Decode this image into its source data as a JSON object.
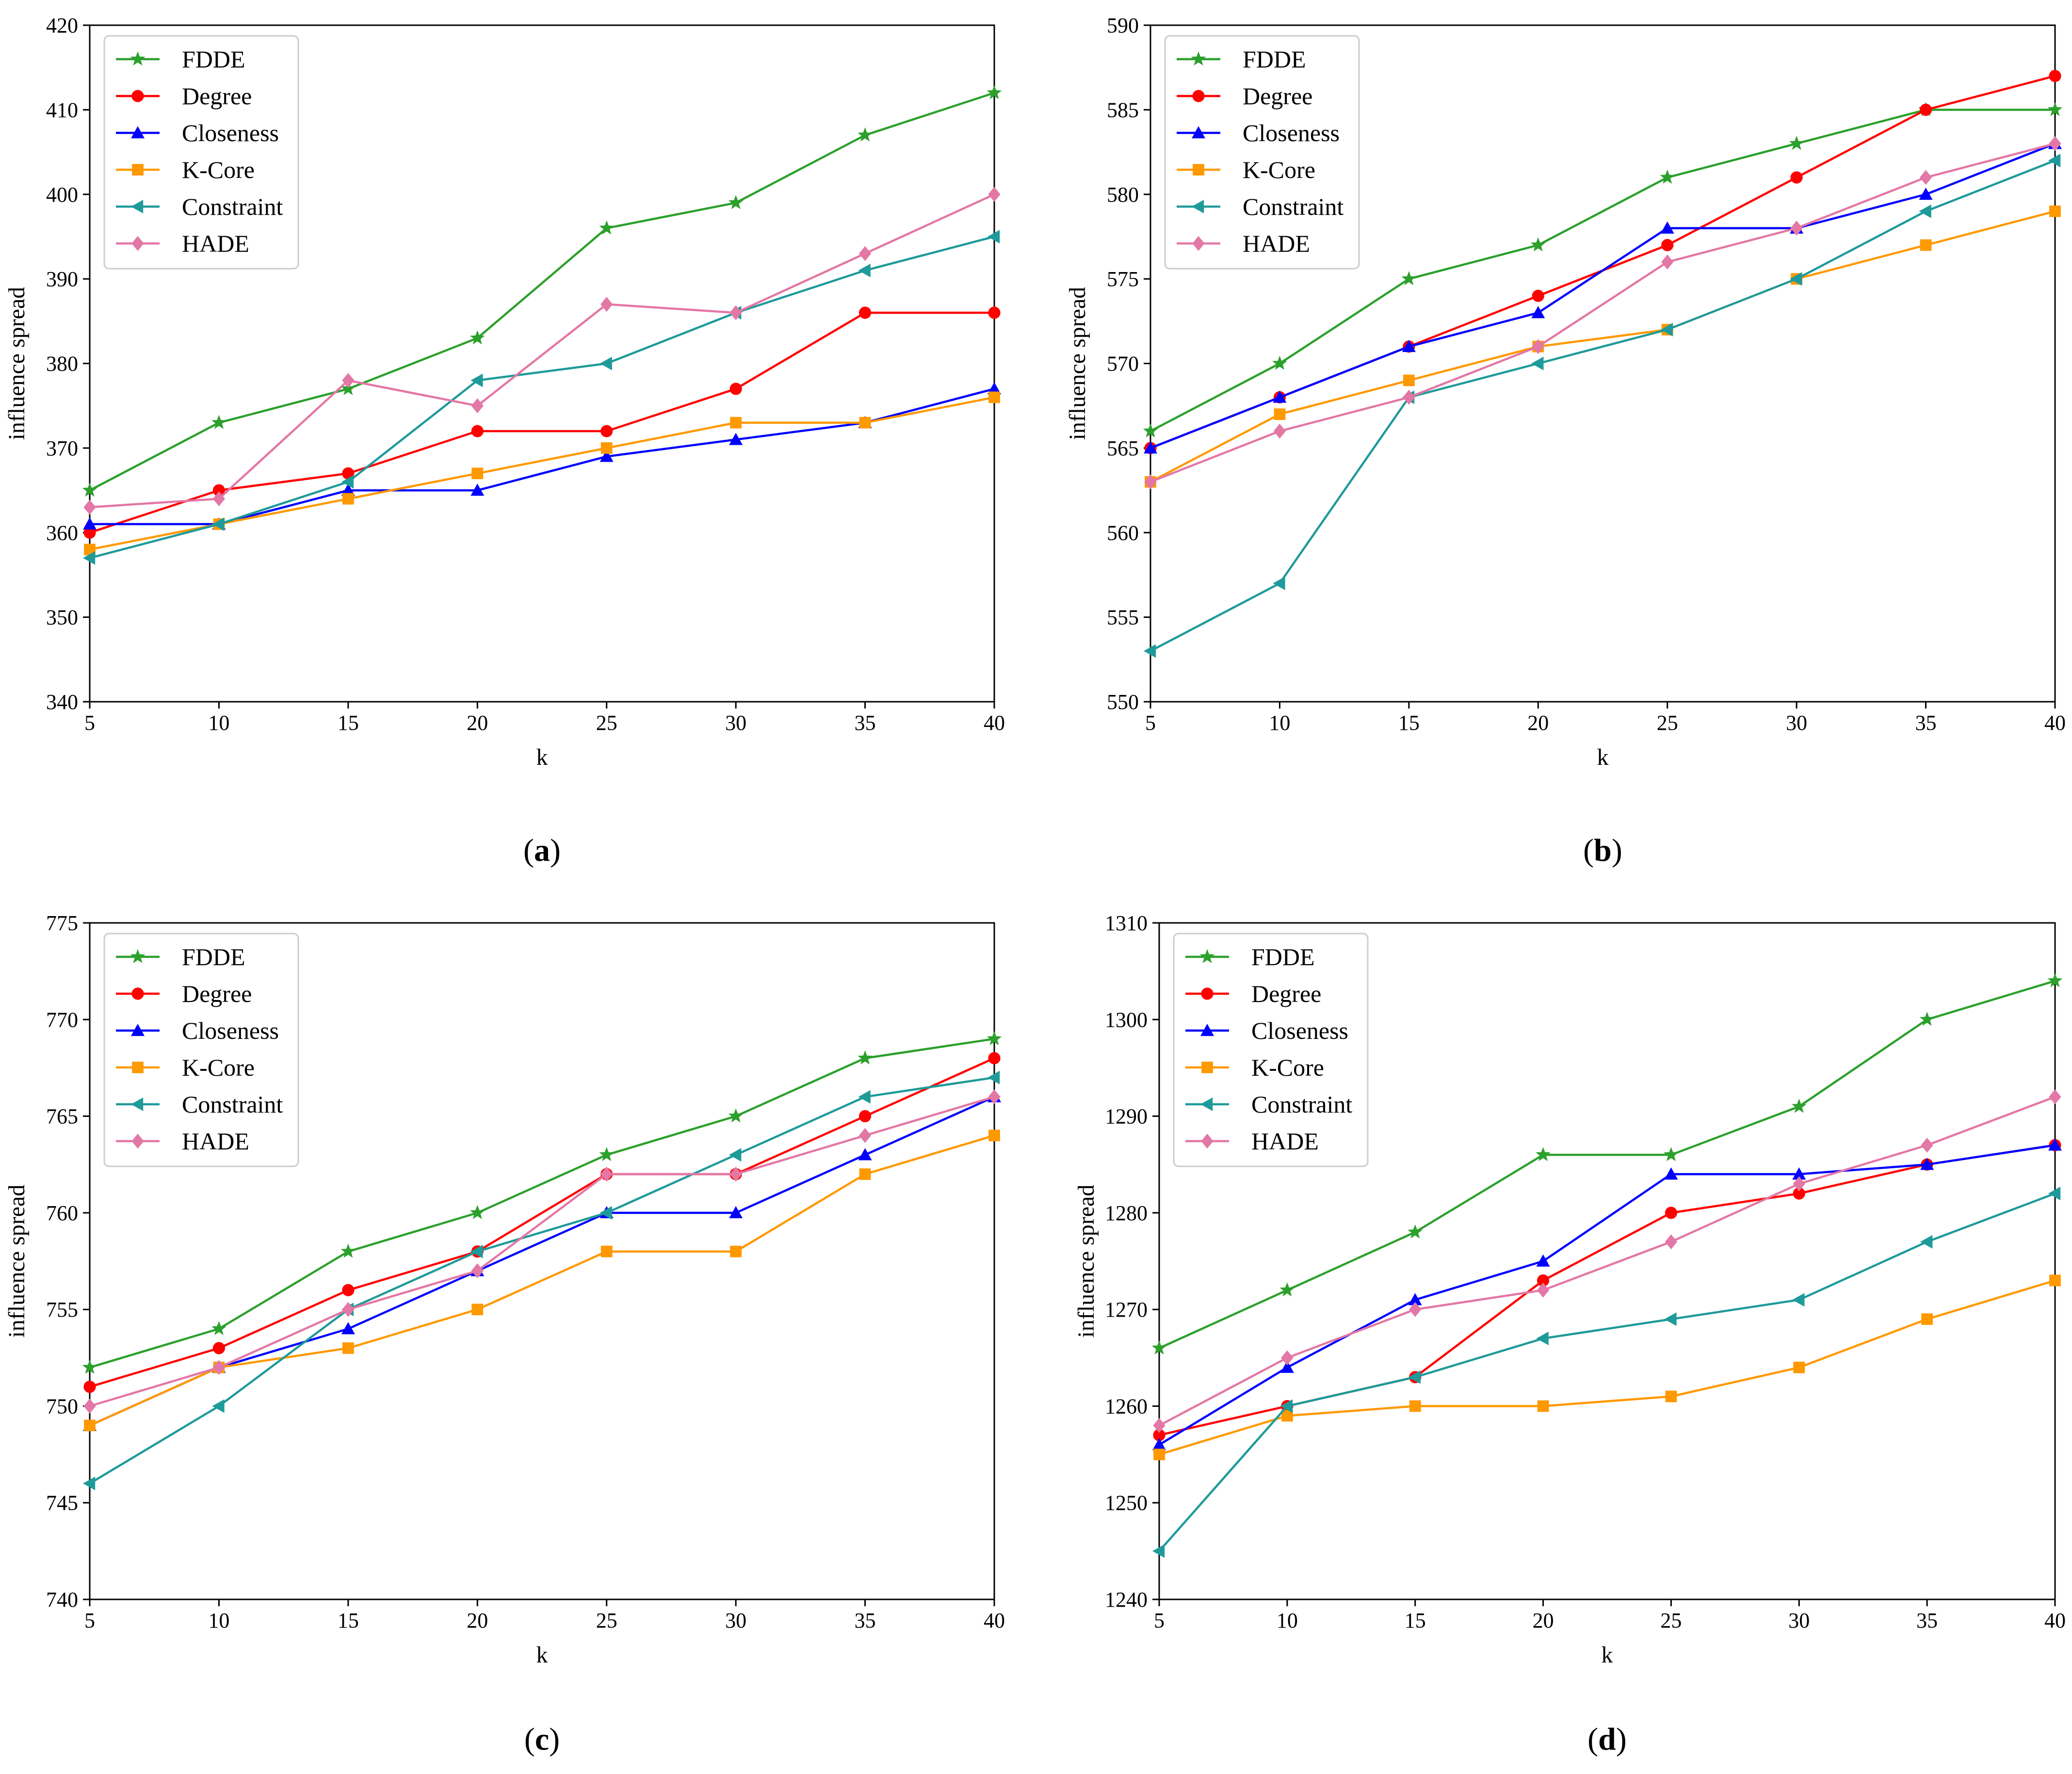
{
  "figure": {
    "captions": [
      "(a)",
      "(b)",
      "(c)",
      "(d)"
    ]
  },
  "series_style": [
    {
      "name": "FDDE",
      "color": "#2ca02c",
      "marker": "star"
    },
    {
      "name": "Degree",
      "color": "#ff0000",
      "marker": "circle"
    },
    {
      "name": "Closeness",
      "color": "#0000ff",
      "marker": "triangle-up"
    },
    {
      "name": "K-Core",
      "color": "#ff9900",
      "marker": "square"
    },
    {
      "name": "Constraint",
      "color": "#1f9a9a",
      "marker": "triangle-left"
    },
    {
      "name": "HADE",
      "color": "#e377a5",
      "marker": "diamond"
    }
  ],
  "chart_data": [
    {
      "type": "line",
      "caption": "(a)",
      "xlabel": "k",
      "ylabel": "influence spread",
      "x": [
        5,
        10,
        15,
        20,
        25,
        30,
        35,
        40
      ],
      "xticks": [
        5,
        10,
        15,
        20,
        25,
        30,
        35,
        40
      ],
      "ylim": [
        340,
        420
      ],
      "yticks": [
        340,
        350,
        360,
        370,
        380,
        390,
        400,
        410,
        420
      ],
      "legend_position": "top-left",
      "series": [
        {
          "name": "FDDE",
          "values": [
            365,
            373,
            377,
            383,
            396,
            399,
            407,
            412
          ]
        },
        {
          "name": "Degree",
          "values": [
            360,
            365,
            367,
            372,
            372,
            377,
            386,
            386
          ]
        },
        {
          "name": "Closeness",
          "values": [
            361,
            361,
            365,
            365,
            369,
            371,
            373,
            377
          ]
        },
        {
          "name": "K-Core",
          "values": [
            358,
            361,
            364,
            367,
            370,
            373,
            373,
            376
          ]
        },
        {
          "name": "Constraint",
          "values": [
            357,
            361,
            366,
            378,
            380,
            386,
            391,
            395
          ]
        },
        {
          "name": "HADE",
          "values": [
            363,
            364,
            378,
            375,
            387,
            386,
            393,
            400
          ]
        }
      ]
    },
    {
      "type": "line",
      "caption": "(b)",
      "xlabel": "k",
      "ylabel": "influence spread",
      "x": [
        5,
        10,
        15,
        20,
        25,
        30,
        35,
        40
      ],
      "xticks": [
        5,
        10,
        15,
        20,
        25,
        30,
        35,
        40
      ],
      "ylim": [
        550,
        590
      ],
      "yticks": [
        550,
        555,
        560,
        565,
        570,
        575,
        580,
        585,
        590
      ],
      "legend_position": "top-left",
      "series": [
        {
          "name": "FDDE",
          "values": [
            566,
            570,
            575,
            577,
            581,
            583,
            585,
            585
          ]
        },
        {
          "name": "Degree",
          "values": [
            565,
            568,
            571,
            574,
            577,
            581,
            585,
            587
          ]
        },
        {
          "name": "Closeness",
          "values": [
            565,
            568,
            571,
            573,
            578,
            578,
            580,
            583
          ]
        },
        {
          "name": "K-Core",
          "values": [
            563,
            567,
            569,
            571,
            572,
            575,
            577,
            579
          ]
        },
        {
          "name": "Constraint",
          "values": [
            553,
            557,
            568,
            570,
            572,
            575,
            579,
            582
          ]
        },
        {
          "name": "HADE",
          "values": [
            563,
            566,
            568,
            571,
            576,
            578,
            581,
            583
          ]
        }
      ]
    },
    {
      "type": "line",
      "caption": "(c)",
      "xlabel": "k",
      "ylabel": "influence spread",
      "x": [
        5,
        10,
        15,
        20,
        25,
        30,
        35,
        40
      ],
      "xticks": [
        5,
        10,
        15,
        20,
        25,
        30,
        35,
        40
      ],
      "ylim": [
        740,
        775
      ],
      "yticks": [
        740,
        745,
        750,
        755,
        760,
        765,
        770,
        775
      ],
      "legend_position": "top-left",
      "series": [
        {
          "name": "FDDE",
          "values": [
            752,
            754,
            758,
            760,
            763,
            765,
            768,
            769
          ]
        },
        {
          "name": "Degree",
          "values": [
            751,
            753,
            756,
            758,
            762,
            762,
            765,
            768
          ]
        },
        {
          "name": "Closeness",
          "values": [
            749,
            752,
            754,
            757,
            760,
            760,
            763,
            766
          ]
        },
        {
          "name": "K-Core",
          "values": [
            749,
            752,
            753,
            755,
            758,
            758,
            762,
            764
          ]
        },
        {
          "name": "Constraint",
          "values": [
            746,
            750,
            755,
            758,
            760,
            763,
            766,
            767
          ]
        },
        {
          "name": "HADE",
          "values": [
            750,
            752,
            755,
            757,
            762,
            762,
            764,
            766
          ]
        }
      ]
    },
    {
      "type": "line",
      "caption": "(d)",
      "xlabel": "k",
      "ylabel": "influence spread",
      "x": [
        5,
        10,
        15,
        20,
        25,
        30,
        35,
        40
      ],
      "xticks": [
        5,
        10,
        15,
        20,
        25,
        30,
        35,
        40
      ],
      "ylim": [
        1240,
        1310
      ],
      "yticks": [
        1240,
        1250,
        1260,
        1270,
        1280,
        1290,
        1300,
        1310
      ],
      "legend_position": "top-left",
      "series": [
        {
          "name": "FDDE",
          "values": [
            1266,
            1272,
            1278,
            1286,
            1286,
            1291,
            1300,
            1304
          ]
        },
        {
          "name": "Degree",
          "values": [
            1257,
            1260,
            1263,
            1273,
            1280,
            1282,
            1285,
            1287
          ]
        },
        {
          "name": "Closeness",
          "values": [
            1256,
            1264,
            1271,
            1275,
            1284,
            1284,
            1285,
            1287
          ]
        },
        {
          "name": "K-Core",
          "values": [
            1255,
            1259,
            1260,
            1260,
            1261,
            1264,
            1269,
            1273
          ]
        },
        {
          "name": "Constraint",
          "values": [
            1245,
            1260,
            1263,
            1267,
            1269,
            1271,
            1277,
            1282
          ]
        },
        {
          "name": "HADE",
          "values": [
            1258,
            1265,
            1270,
            1272,
            1277,
            1283,
            1287,
            1292
          ]
        }
      ]
    }
  ]
}
